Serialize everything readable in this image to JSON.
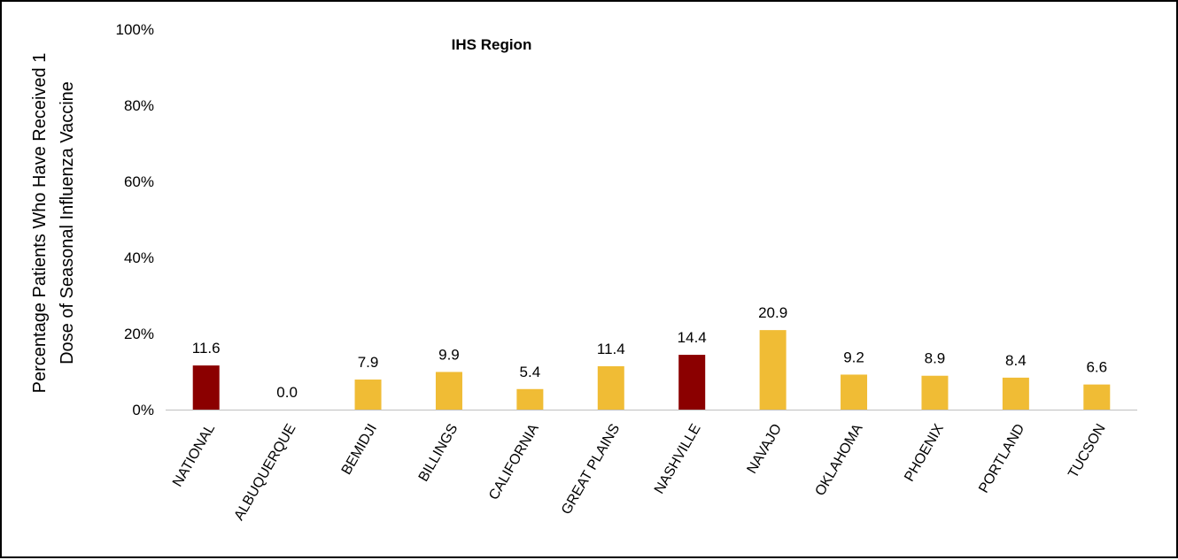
{
  "chart_data": {
    "type": "bar",
    "title": "IHS Region",
    "ylabel_lines": [
      "Percentage Patients Who Have Received 1",
      "Dose of Seasonal Influenza Vaccine"
    ],
    "xlabel": "",
    "ylim": [
      0,
      100
    ],
    "yticks": [
      "0%",
      "20%",
      "40%",
      "60%",
      "80%",
      "100%"
    ],
    "ytick_values": [
      0,
      20,
      40,
      60,
      80,
      100
    ],
    "grid": false,
    "categories": [
      "NATIONAL",
      "ALBUQUERQUE",
      "BEMIDJI",
      "BILLINGS",
      "CALIFORNIA",
      "GREAT PLAINS",
      "NASHVILLE",
      "NAVAJO",
      "OKLAHOMA",
      "PHOENIX",
      "PORTLAND",
      "TUCSON"
    ],
    "values": [
      11.6,
      0.0,
      7.9,
      9.9,
      5.4,
      11.4,
      14.4,
      20.9,
      9.2,
      8.9,
      8.4,
      6.6
    ],
    "data_labels": [
      "11.6",
      "0.0",
      "7.9",
      "9.9",
      "5.4",
      "11.4",
      "14.4",
      "20.9",
      "9.2",
      "8.9",
      "8.4",
      "6.6"
    ],
    "bar_colors": [
      "#8b0000",
      "#f0bc35",
      "#f0bc35",
      "#f0bc35",
      "#f0bc35",
      "#f0bc35",
      "#8b0000",
      "#f0bc35",
      "#f0bc35",
      "#f0bc35",
      "#f0bc35",
      "#f0bc35"
    ],
    "colors": {
      "highlight": "#8b0000",
      "default": "#f0bc35",
      "axis": "#bfbfbf"
    }
  }
}
